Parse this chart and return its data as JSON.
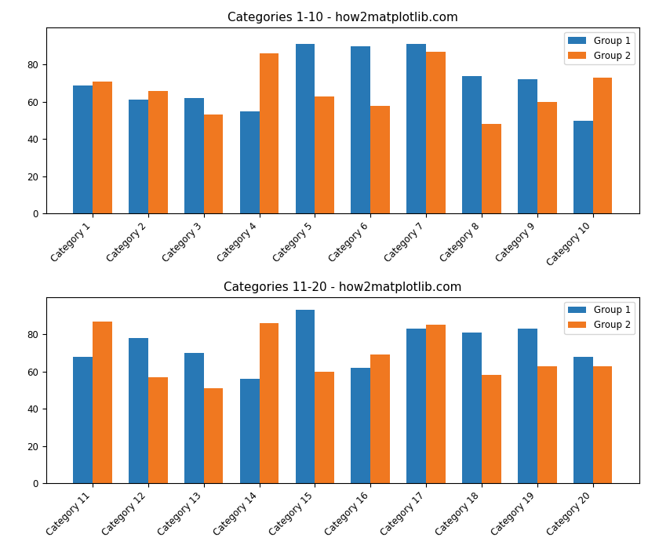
{
  "plot1": {
    "title": "Categories 1-10 - how2matplotlib.com",
    "categories": [
      "Category 1",
      "Category 2",
      "Category 3",
      "Category 4",
      "Category 5",
      "Category 6",
      "Category 7",
      "Category 8",
      "Category 9",
      "Category 10"
    ],
    "group1": [
      69,
      61,
      62,
      55,
      91,
      90,
      91,
      74,
      72,
      50
    ],
    "group2": [
      71,
      66,
      53,
      86,
      63,
      58,
      87,
      48,
      60,
      73
    ]
  },
  "plot2": {
    "title": "Categories 11-20 - how2matplotlib.com",
    "categories": [
      "Category 11",
      "Category 12",
      "Category 13",
      "Category 14",
      "Category 15",
      "Category 16",
      "Category 17",
      "Category 18",
      "Category 19",
      "Category 20"
    ],
    "group1": [
      68,
      78,
      70,
      56,
      93,
      62,
      83,
      81,
      83,
      68
    ],
    "group2": [
      87,
      57,
      51,
      86,
      60,
      69,
      85,
      58,
      63,
      63
    ]
  },
  "color_group1": "#2878b5",
  "color_group2": "#f07820",
  "bar_width": 0.35,
  "legend_labels": [
    "Group 1",
    "Group 2"
  ],
  "ylim": [
    0,
    100
  ],
  "yticks": [
    0,
    20,
    40,
    60,
    80
  ],
  "figsize": [
    8.4,
    7.0
  ],
  "dpi": 100,
  "title_fontsize": 11,
  "tick_fontsize": 8.5
}
